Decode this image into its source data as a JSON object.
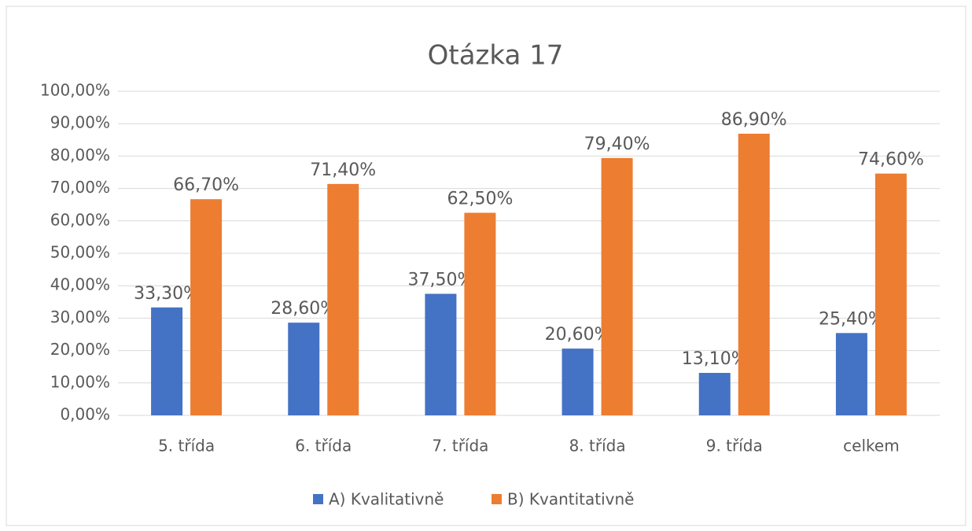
{
  "chart_data": {
    "type": "bar",
    "title": "Otázka 17",
    "categories": [
      "5. třída",
      "6. třída",
      "7. třída",
      "8. třída",
      "9. třída",
      "celkem"
    ],
    "series": [
      {
        "name": "A) Kvalitativně",
        "color": "#4472c4",
        "values": [
          33.3,
          28.6,
          37.5,
          20.6,
          13.1,
          25.4
        ],
        "value_labels": [
          "33,30%",
          "28,60%",
          "37,50%",
          "20,60%",
          "13,10%",
          "25,40%"
        ]
      },
      {
        "name": "B) Kvantitativně",
        "color": "#ed7d31",
        "values": [
          66.7,
          71.4,
          62.5,
          79.4,
          86.9,
          74.6
        ],
        "value_labels": [
          "66,70%",
          "71,40%",
          "62,50%",
          "79,40%",
          "86,90%",
          "74,60%"
        ]
      }
    ],
    "ylim": [
      0,
      100
    ],
    "yticks": [
      {
        "value": 0,
        "label": "0,00%"
      },
      {
        "value": 10,
        "label": "10,00%"
      },
      {
        "value": 20,
        "label": "20,00%"
      },
      {
        "value": 30,
        "label": "30,00%"
      },
      {
        "value": 40,
        "label": "40,00%"
      },
      {
        "value": 50,
        "label": "50,00%"
      },
      {
        "value": 60,
        "label": "60,00%"
      },
      {
        "value": 70,
        "label": "70,00%"
      },
      {
        "value": 80,
        "label": "80,00%"
      },
      {
        "value": 90,
        "label": "90,00%"
      },
      {
        "value": 100,
        "label": "100,00%"
      }
    ],
    "grid": true,
    "legend": "bottom"
  }
}
